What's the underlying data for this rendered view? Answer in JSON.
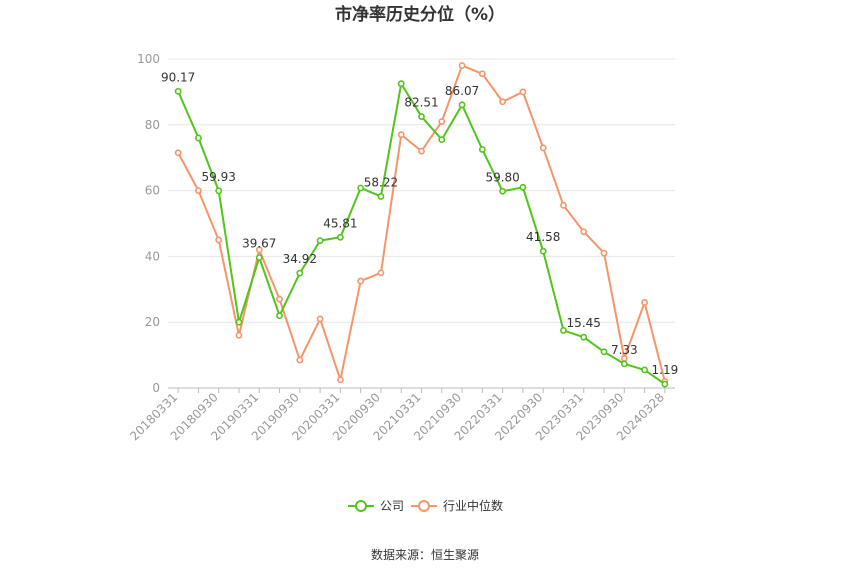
{
  "chart_data": {
    "type": "line",
    "title": "市净率历史分位（%）",
    "xlabel": "",
    "ylabel": "",
    "ylim": [
      0,
      100
    ],
    "yticks": [
      0,
      20,
      40,
      60,
      80,
      100
    ],
    "grid": true,
    "legend_position": "bottom",
    "x": [
      "20180331",
      "20180630",
      "20180930",
      "20181231",
      "20190331",
      "20190630",
      "20190930",
      "20191231",
      "20200331",
      "20200630",
      "20200930",
      "20201231",
      "20210331",
      "20210630",
      "20210930",
      "20211231",
      "20220331",
      "20220630",
      "20220930",
      "20221231",
      "20230331",
      "20230630",
      "20230930",
      "20231231",
      "20240328"
    ],
    "x_tick_labels": [
      "20180331",
      "20180930",
      "20190331",
      "20190930",
      "20200331",
      "20200930",
      "20210331",
      "20210930",
      "20220331",
      "20220930",
      "20230331",
      "20230930",
      "20240328"
    ],
    "series": [
      {
        "name": "公司",
        "color": "#52c41a",
        "values": [
          90.17,
          76.0,
          59.93,
          20.0,
          39.67,
          22.0,
          34.92,
          44.8,
          45.81,
          60.8,
          58.22,
          92.5,
          82.51,
          75.5,
          86.07,
          72.5,
          59.8,
          61.0,
          41.58,
          17.5,
          15.45,
          11.0,
          7.33,
          5.5,
          1.19
        ],
        "labels": {
          "0": "90.17",
          "2": "59.93",
          "4": "39.67",
          "6": "34.92",
          "8": "45.81",
          "10": "58.22",
          "12": "82.51",
          "14": "86.07",
          "16": "59.80",
          "18": "41.58",
          "20": "15.45",
          "22": "7.33",
          "24": "1.19"
        }
      },
      {
        "name": "行业中位数",
        "color": "#f4956a",
        "values": [
          71.5,
          60.0,
          45.0,
          16.0,
          42.0,
          27.0,
          8.5,
          21.0,
          2.5,
          32.5,
          35.0,
          77.0,
          72.0,
          81.0,
          98.0,
          95.5,
          87.0,
          90.0,
          73.0,
          55.5,
          47.5,
          41.0,
          9.0,
          26.0,
          2.0
        ]
      }
    ]
  },
  "legend": [
    {
      "label": "公司",
      "color": "#52c41a"
    },
    {
      "label": "行业中位数",
      "color": "#f4956a"
    }
  ],
  "source": "数据来源：恒生聚源"
}
